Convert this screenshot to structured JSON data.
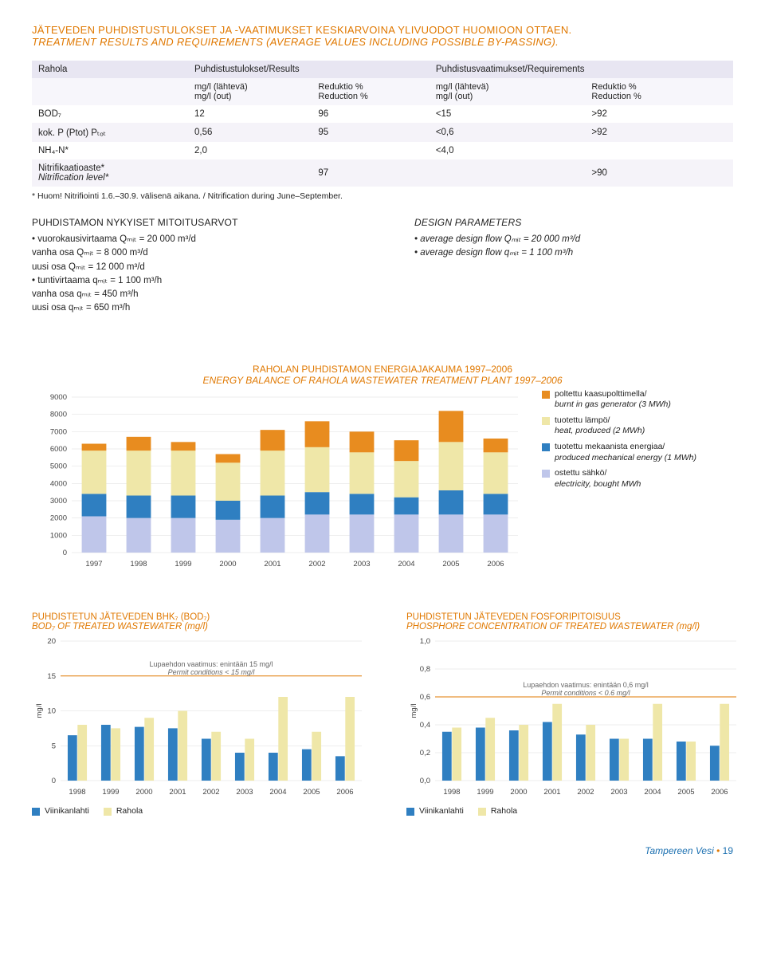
{
  "title": {
    "fi": "JÄTEVEDEN PUHDISTUSTULOKSET JA -VAATIMUKSET KESKIARVOINA YLIVUODOT HUOMIOON OTTAEN.",
    "en": "TREATMENT RESULTS AND REQUIREMENTS (AVERAGE VALUES INCLUDING POSSIBLE BY-PASSING)."
  },
  "table": {
    "h_site": "Rahola",
    "h_results": "Puhdistustulokset/Results",
    "h_reqs": "Puhdistusvaatimukset/Requirements",
    "c1": "mg/l (lähtevä)\nmg/l (out)",
    "c2": "Reduktio %\nReduction %",
    "c3": "mg/l (lähtevä)\nmg/l (out)",
    "c4": "Reduktio %\nReduction %",
    "rows": [
      {
        "p": "BOD₇",
        "a": "12",
        "b": "96",
        "c": "<15",
        "d": ">92"
      },
      {
        "p": "kok. P (Ptot) Pₜₒₜ",
        "a": "0,56",
        "b": "95",
        "c": "<0,6",
        "d": ">92"
      },
      {
        "p": "NH₄-N*",
        "a": "2,0",
        "b": "",
        "c": "<4,0",
        "d": ""
      },
      {
        "p": "Nitrifikaatioaste*\nNitrification level*",
        "a": "",
        "b": "97",
        "c": "",
        "d": ">90"
      }
    ],
    "footnote": "* Huom! Nitrifiointi 1.6.–30.9. välisenä aikana. / Nitrification during June–September."
  },
  "left_params": {
    "heading": "PUHDISTAMON NYKYISET MITOITUSARVOT",
    "lines": [
      "• vuorokausivirtaama Qₘᵢₜ = 20 000 m³/d",
      "vanha osa Qₘᵢₜ = 8 000 m³/d",
      "uusi osa Qₘᵢₜ = 12 000 m³/d",
      "• tuntivirtaama qₘᵢₜ = 1 100 m³/h",
      "vanha osa qₘᵢₜ = 450 m³/h",
      "uusi osa qₘᵢₜ = 650 m³/h"
    ]
  },
  "right_params": {
    "heading": "DESIGN PARAMETERS",
    "lines": [
      "• average design flow Qₘᵢₜ = 20 000 m³/d",
      "• average design flow qₘᵢₜ = 1 100 m³/h"
    ]
  },
  "energy_chart": {
    "title_fi": "RAHOLAN PUHDISTAMON ENERGIAJAKAUMA 1997–2006",
    "title_en": "ENERGY BALANCE OF RAHOLA WASTEWATER TREATMENT PLANT 1997–2006",
    "type": "stacked-bar",
    "years": [
      "1997",
      "1998",
      "1999",
      "2000",
      "2001",
      "2002",
      "2003",
      "2004",
      "2005",
      "2006"
    ],
    "ymax": 9000,
    "ystep": 1000,
    "series": [
      {
        "key": "elec",
        "color": "#bfc6ea",
        "fi": "ostettu sähkö/",
        "en": "electricity, bought MWh",
        "vals": [
          2100,
          2000,
          2000,
          1900,
          2000,
          2200,
          2200,
          2200,
          2200,
          2200
        ]
      },
      {
        "key": "mech",
        "color": "#2f7fc1",
        "fi": "tuotettu mekaanista energiaa/",
        "en": "produced mechanical energy (1 MWh)",
        "vals": [
          1300,
          1300,
          1300,
          1100,
          1300,
          1300,
          1200,
          1000,
          1400,
          1200
        ]
      },
      {
        "key": "heat",
        "color": "#efe7a8",
        "fi": "tuotettu lämpö/",
        "en": "heat, produced (2 MWh)",
        "vals": [
          2500,
          2600,
          2600,
          2200,
          2600,
          2600,
          2400,
          2100,
          2800,
          2400
        ]
      },
      {
        "key": "burnt",
        "color": "#e88c1f",
        "fi": "poltettu kaasupolttimella/",
        "en": "burnt in gas generator (3 MWh)",
        "vals": [
          400,
          800,
          500,
          500,
          1200,
          1500,
          1200,
          1200,
          1800,
          800
        ]
      }
    ],
    "legend_order": [
      "burnt",
      "heat",
      "mech",
      "elec"
    ]
  },
  "bod_chart": {
    "title_fi": "PUHDISTETUN JÄTEVEDEN BHK₇ (BOD₇)",
    "title_en": "BOD₇ OF TREATED WASTEWATER (mg/l)",
    "type": "grouped-bar",
    "ylabel": "mg/l",
    "ymax": 20,
    "ystep": 5,
    "years": [
      "1998",
      "1999",
      "2000",
      "2001",
      "2002",
      "2003",
      "2004",
      "2005",
      "2006"
    ],
    "limit": {
      "y": 15,
      "fi": "Lupaehdon vaatimus: enintään 15 mg/l",
      "en": "Permit conditions < 15 mg/l"
    },
    "series": [
      {
        "key": "v",
        "label": "Viinikanlahti",
        "color": "#2f7fc1",
        "vals": [
          6.5,
          8,
          7.7,
          7.5,
          6,
          4,
          4,
          4.5,
          3.5
        ]
      },
      {
        "key": "r",
        "label": "Rahola",
        "color": "#efe7a8",
        "vals": [
          8,
          7.5,
          9,
          10,
          7,
          6,
          12,
          7,
          12
        ]
      }
    ]
  },
  "phos_chart": {
    "title_fi": "PUHDISTETUN JÄTEVEDEN FOSFORIPITOISUUS",
    "title_en": "PHOSPHORE CONCENTRATION OF TREATED WASTEWATER (mg/l)",
    "type": "grouped-bar",
    "ylabel": "mg/l",
    "ymax": 1,
    "ystep": 0.2,
    "years": [
      "1998",
      "1999",
      "2000",
      "2001",
      "2002",
      "2003",
      "2004",
      "2005",
      "2006"
    ],
    "limit": {
      "y": 0.6,
      "fi": "Lupaehdon vaatimus: enintään 0,6 mg/l",
      "en": "Permit conditions < 0.6 mg/l"
    },
    "series": [
      {
        "key": "v",
        "label": "Viinikanlahti",
        "color": "#2f7fc1",
        "vals": [
          0.35,
          0.38,
          0.36,
          0.42,
          0.33,
          0.3,
          0.3,
          0.28,
          0.25
        ]
      },
      {
        "key": "r",
        "label": "Rahola",
        "color": "#efe7a8",
        "vals": [
          0.38,
          0.45,
          0.4,
          0.55,
          0.4,
          0.3,
          0.55,
          0.28,
          0.55
        ]
      }
    ]
  },
  "footer": {
    "brand": "Tampereen Vesi",
    "page": "19"
  }
}
